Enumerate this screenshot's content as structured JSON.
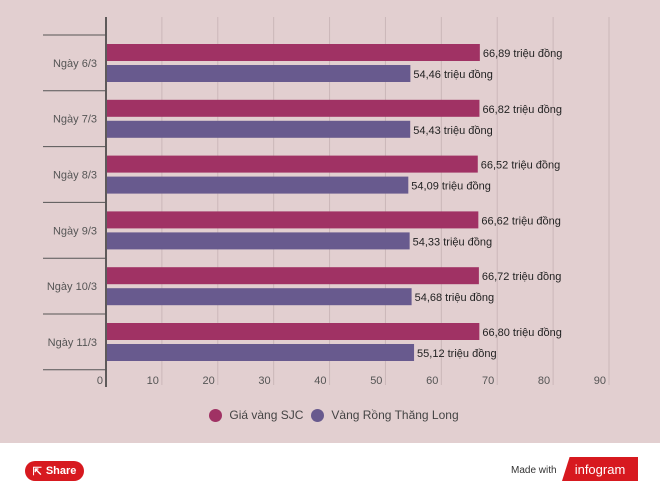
{
  "chart_data": {
    "type": "bar",
    "orientation": "horizontal",
    "categories": [
      "Ngày 6/3",
      "Ngày 7/3",
      "Ngày 8/3",
      "Ngày 9/3",
      "Ngày 10/3",
      "Ngày 11/3"
    ],
    "series": [
      {
        "name": "Giá vàng SJC",
        "color": "#a03264",
        "values": [
          66.89,
          66.82,
          66.52,
          66.62,
          66.72,
          66.8
        ],
        "labels": [
          "66,89 triệu đồng",
          "66,82 triệu đồng",
          "66,52 triệu đồng",
          "66,62 triệu đồng",
          "66,72 triệu đồng",
          "66,80 triệu đồng"
        ]
      },
      {
        "name": "Vàng Rồng Thăng Long",
        "color": "#685a8e",
        "values": [
          54.46,
          54.43,
          54.09,
          54.33,
          54.68,
          55.12
        ],
        "labels": [
          "54,46 triệu đồng",
          "54,43 triệu đồng",
          "54,09 triệu đồng",
          "54,33 triệu đồng",
          "54,68 triệu đồng",
          "55,12 triệu đồng"
        ]
      }
    ],
    "xlim": [
      0,
      90
    ],
    "xticks": [
      "0",
      "10",
      "20",
      "30",
      "40",
      "50",
      "60",
      "70",
      "80",
      "90"
    ],
    "legend": "bottom"
  },
  "footer": {
    "share_label": "Share",
    "made_with": "Made with",
    "brand": "infogram"
  }
}
